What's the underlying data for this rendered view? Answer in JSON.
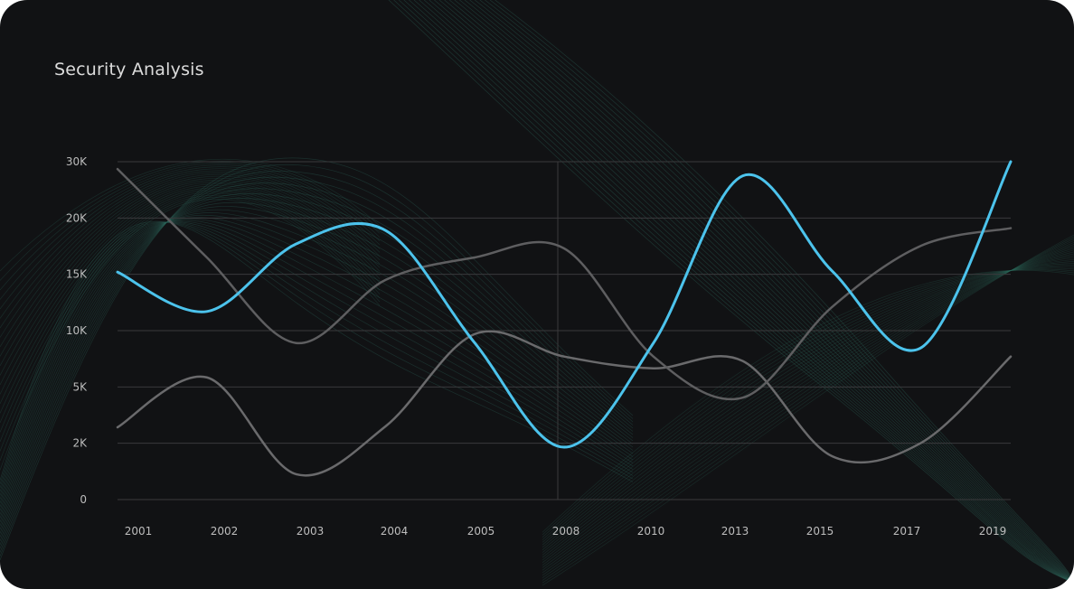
{
  "chart_data": {
    "type": "line",
    "title": "Security Analysis",
    "xlabel": "",
    "ylabel": "",
    "categories": [
      "2001",
      "2002",
      "2003",
      "2004",
      "2005",
      "2008",
      "2010",
      "2013",
      "2015",
      "2017",
      "2019"
    ],
    "y_ticks": [
      0,
      2000,
      5000,
      10000,
      15000,
      20000,
      30000
    ],
    "y_tick_labels": [
      "0",
      "2K",
      "5K",
      "10K",
      "15K",
      "20K",
      "30K"
    ],
    "ylim": [
      0,
      30000
    ],
    "grid": "horizontal",
    "legend": "none",
    "series": [
      {
        "color": "#4cc3ec",
        "values": [
          15200,
          11700,
          17700,
          18900,
          8900,
          1860,
          8900,
          27500,
          15300,
          8500,
          30000
        ]
      },
      {
        "color": "#5e5e60",
        "values": [
          28700,
          16500,
          8900,
          14500,
          16500,
          17300,
          7700,
          4430,
          12100,
          17550,
          19100
        ]
      },
      {
        "color": "#6a6a6c",
        "values": [
          2850,
          5850,
          900,
          2900,
          9700,
          7700,
          6650,
          7300,
          1540,
          2030,
          7700
        ]
      }
    ]
  }
}
